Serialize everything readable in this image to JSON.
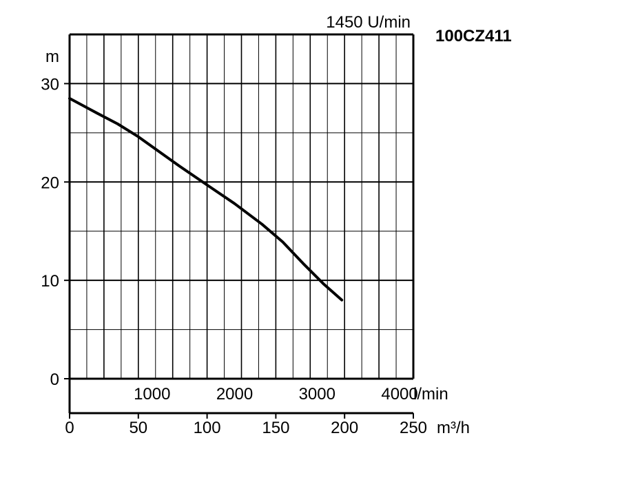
{
  "chart_data": {
    "type": "line",
    "model": "100CZ411",
    "speed_label": "1450 U/min",
    "y_unit": "m",
    "x_unit_primary": "m³/h",
    "x_unit_secondary": "l/min",
    "ylim": [
      0,
      35
    ],
    "xlim": [
      0,
      250
    ],
    "grid": true,
    "y_ticks": [
      "0",
      "10",
      "20",
      "30"
    ],
    "x_ticks": [
      "0",
      "50",
      "100",
      "150",
      "200",
      "250"
    ],
    "x_ticks_secondary": [
      "1000",
      "2000",
      "3000",
      "4000"
    ],
    "series": [
      {
        "x": [
          0,
          20,
          35,
          50,
          65,
          80,
          100,
          120,
          140,
          155,
          170,
          185,
          198
        ],
        "y": [
          28.5,
          27.0,
          25.9,
          24.6,
          23.1,
          21.6,
          19.7,
          17.8,
          15.7,
          13.9,
          11.7,
          9.6,
          8.0
        ]
      }
    ]
  }
}
